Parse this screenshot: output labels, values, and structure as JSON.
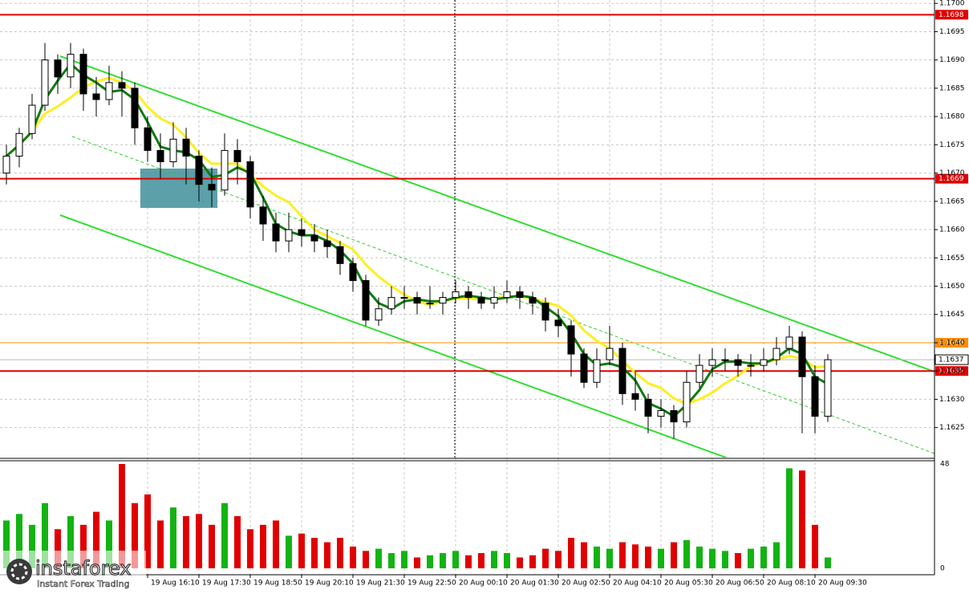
{
  "chart_data": {
    "type": "candlestick",
    "ylim": [
      1.16197,
      1.17006
    ],
    "yticks": [
      1.1625,
      {
        "value": 1.163,
        "label": "1.1630"
      },
      1.1635,
      {
        "value": 1.164,
        "label": "1.1640"
      },
      1.1645,
      {
        "value": 1.165,
        "label": "1.1650"
      },
      1.1655,
      {
        "value": 1.166,
        "label": "1.1660"
      },
      1.1665,
      {
        "value": 1.167,
        "label": "1.1670"
      },
      1.1675,
      {
        "value": 1.168,
        "label": "1.1680"
      },
      1.1685,
      {
        "value": 1.169,
        "label": "1.1690"
      },
      1.1695,
      {
        "value": 1.17,
        "label": "1.1700"
      }
    ],
    "grid": true,
    "up_color": "#ffffff",
    "down_color": "#000000",
    "volume_up_color": "#12b312",
    "volume_down_color": "#e00000",
    "categories": [
      null,
      null,
      null,
      null,
      null,
      null,
      null,
      null,
      null,
      null,
      null,
      "19 Aug 16:10",
      null,
      null,
      null,
      "19 Aug 17:30",
      null,
      null,
      null,
      "19 Aug 18:50",
      null,
      null,
      null,
      "19 Aug 20:10",
      null,
      null,
      null,
      "19 Aug 21:30",
      null,
      null,
      null,
      "19 Aug 22:50",
      null,
      null,
      null,
      "20 Aug 00:10",
      null,
      null,
      null,
      "20 Aug 01:30",
      null,
      null,
      null,
      "20 Aug 02:50",
      null,
      null,
      null,
      "20 Aug 04:10",
      null,
      null,
      null,
      "20 Aug 05:30",
      null,
      null,
      null,
      "20 Aug 06:50",
      null,
      null,
      null,
      "20 Aug 08:10",
      null,
      null,
      null,
      "20 Aug 09:30",
      null
    ],
    "open": [
      1.167,
      1.1673,
      1.1677,
      1.1682,
      1.169,
      1.1687,
      1.1691,
      1.1684,
      1.1683,
      1.1686,
      1.1685,
      1.1678,
      1.1674,
      1.1672,
      1.1676,
      1.1673,
      1.1668,
      1.1667,
      1.1674,
      1.1672,
      1.1664,
      1.1661,
      1.1658,
      1.166,
      1.1659,
      1.1658,
      1.1657,
      1.1654,
      1.1651,
      1.1644,
      1.1646,
      1.1648,
      1.1648,
      1.1647,
      1.1647,
      1.1648,
      1.1649,
      1.1648,
      1.1647,
      1.1648,
      1.1649,
      1.1648,
      1.1647,
      1.1644,
      1.1643,
      1.1638,
      1.1633,
      1.1637,
      1.1639,
      1.1631,
      1.163,
      1.1627,
      1.1628,
      1.1626,
      1.1633,
      1.1636,
      1.1637,
      1.1637,
      1.1636,
      1.1636,
      1.1637,
      1.1639,
      1.1641,
      1.1634,
      1.1627
    ],
    "high": [
      1.1675,
      1.1678,
      1.1684,
      1.1693,
      1.1691,
      1.1693,
      1.1692,
      1.1687,
      1.1689,
      1.1688,
      1.1686,
      1.168,
      1.1677,
      1.1679,
      1.1678,
      1.1674,
      1.1671,
      1.1677,
      1.1676,
      1.1673,
      1.1666,
      1.1663,
      1.1663,
      1.1662,
      1.1661,
      1.166,
      1.1658,
      1.1655,
      1.1652,
      1.1648,
      1.165,
      1.165,
      1.1649,
      1.165,
      1.1649,
      1.1651,
      1.165,
      1.1649,
      1.165,
      1.1651,
      1.165,
      1.1649,
      1.1648,
      1.1646,
      1.1644,
      1.1639,
      1.1639,
      1.1643,
      1.164,
      1.1635,
      1.1631,
      1.163,
      1.1629,
      1.1635,
      1.1638,
      1.1639,
      1.1639,
      1.1638,
      1.1638,
      1.1639,
      1.1641,
      1.1643,
      1.1642,
      1.1636,
      1.1638
    ],
    "low": [
      1.1668,
      1.1671,
      1.1676,
      1.1681,
      1.1684,
      1.1685,
      1.1681,
      1.168,
      1.1682,
      1.168,
      1.1675,
      1.1672,
      1.1669,
      1.1671,
      1.1668,
      1.1665,
      1.1664,
      1.1666,
      1.1668,
      1.1662,
      1.1658,
      1.1656,
      1.1656,
      1.1657,
      1.1656,
      1.1655,
      1.1652,
      1.1649,
      1.1643,
      1.1643,
      1.1645,
      1.1646,
      1.1645,
      1.1646,
      1.1645,
      1.1647,
      1.1646,
      1.1646,
      1.1646,
      1.1647,
      1.1646,
      1.1645,
      1.1642,
      1.1641,
      1.1634,
      1.1632,
      1.1632,
      1.1636,
      1.1629,
      1.1628,
      1.1624,
      1.1625,
      1.1623,
      1.1625,
      1.1632,
      1.1634,
      1.1635,
      1.1634,
      1.1634,
      1.1635,
      1.1636,
      1.1638,
      1.1624,
      1.1624,
      1.1626
    ],
    "close": [
      1.1673,
      1.1677,
      1.1682,
      1.169,
      1.1687,
      1.1691,
      1.1684,
      1.1683,
      1.1686,
      1.1685,
      1.1678,
      1.1674,
      1.1672,
      1.1676,
      1.1673,
      1.1668,
      1.1667,
      1.1674,
      1.1672,
      1.1664,
      1.1661,
      1.1658,
      1.166,
      1.1659,
      1.1658,
      1.1657,
      1.1654,
      1.1651,
      1.1644,
      1.1646,
      1.1648,
      1.1648,
      1.1647,
      1.1647,
      1.1648,
      1.1649,
      1.1648,
      1.1647,
      1.1648,
      1.1649,
      1.1648,
      1.1647,
      1.1644,
      1.1643,
      1.1638,
      1.1633,
      1.1637,
      1.1639,
      1.1631,
      1.163,
      1.1627,
      1.1628,
      1.1626,
      1.1633,
      1.1636,
      1.1637,
      1.1637,
      1.1636,
      1.1636,
      1.1637,
      1.1639,
      1.1641,
      1.1634,
      1.1627,
      1.1637
    ],
    "volume": [
      22,
      25,
      20,
      30,
      18,
      24,
      20,
      26,
      22,
      48,
      30,
      34,
      22,
      28,
      24,
      25,
      20,
      30,
      24,
      18,
      20,
      22,
      15,
      16,
      14,
      12,
      14,
      10,
      8,
      9,
      7,
      8,
      5,
      6,
      7,
      8,
      6,
      7,
      8,
      7,
      5,
      6,
      9,
      8,
      14,
      12,
      10,
      9,
      12,
      11,
      10,
      9,
      12,
      13,
      10,
      9,
      8,
      7,
      9,
      10,
      12,
      46,
      45,
      20,
      5
    ],
    "volume_ylim": [
      0,
      48
    ],
    "volume_ticks": [
      0,
      48
    ],
    "levels": [
      {
        "value": 1.1698,
        "color": "#e00000"
      },
      {
        "value": 1.1669,
        "color": "#e00000"
      },
      {
        "value": 1.164,
        "label": "1.1640",
        "color": "#ff8c00"
      },
      {
        "value": 1.1635,
        "color": "#e00000"
      }
    ],
    "last_price": 1.1637,
    "watermark": {
      "name": "instaforex",
      "tagline": "Instant Forex Trading"
    }
  }
}
